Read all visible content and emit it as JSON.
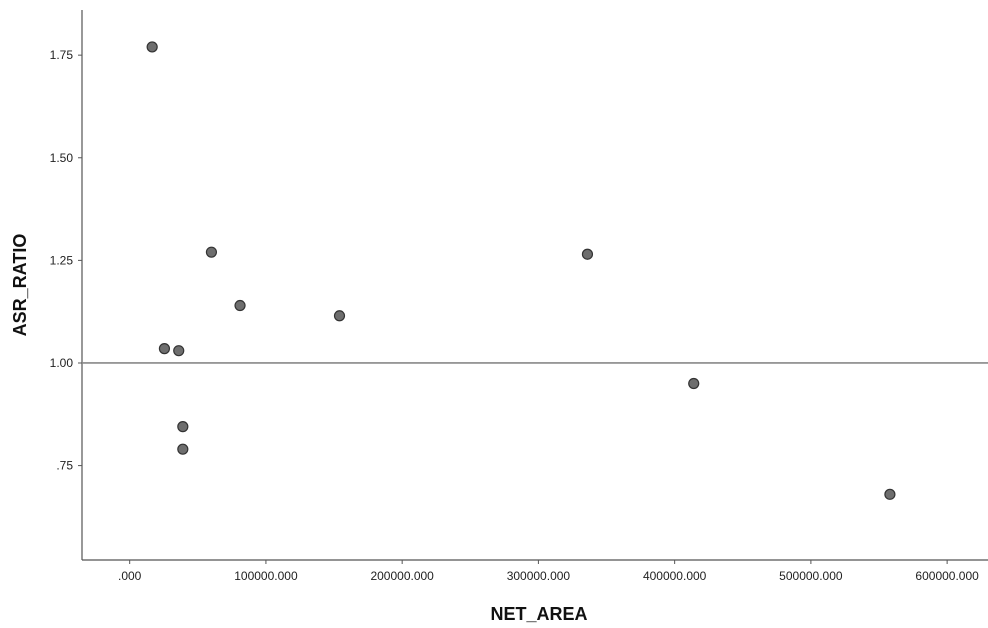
{
  "chart_data": {
    "type": "scatter",
    "title": "",
    "xlabel": "NET_AREA",
    "ylabel": "ASR_RATIO",
    "xlim": [
      -35000,
      630000
    ],
    "ylim": [
      0.52,
      1.86
    ],
    "grid": false,
    "x_ticks": [
      0,
      100000,
      200000,
      300000,
      400000,
      500000,
      600000
    ],
    "x_tick_labels": [
      ".000",
      "100000.000",
      "200000.000",
      "300000.000",
      "400000.000",
      "500000.000",
      "600000.000"
    ],
    "y_ticks": [
      0.75,
      1.0,
      1.25,
      1.5,
      1.75
    ],
    "y_tick_labels": [
      ".75",
      "1.00",
      "1.25",
      "1.50",
      "1.75"
    ],
    "reference_line": {
      "axis": "y",
      "value": 1.0,
      "color": "#888888"
    },
    "marker_color": "#6e6e6e",
    "marker_edge": "#333333",
    "series": [
      {
        "points": [
          {
            "x": 16500,
            "y": 1.77
          },
          {
            "x": 25500,
            "y": 1.035
          },
          {
            "x": 36000,
            "y": 1.03
          },
          {
            "x": 39000,
            "y": 0.845
          },
          {
            "x": 39000,
            "y": 0.79
          },
          {
            "x": 60000,
            "y": 1.27
          },
          {
            "x": 81000,
            "y": 1.14
          },
          {
            "x": 154000,
            "y": 1.115
          },
          {
            "x": 336000,
            "y": 1.265
          },
          {
            "x": 414000,
            "y": 0.95
          },
          {
            "x": 558000,
            "y": 0.68
          }
        ]
      }
    ]
  }
}
